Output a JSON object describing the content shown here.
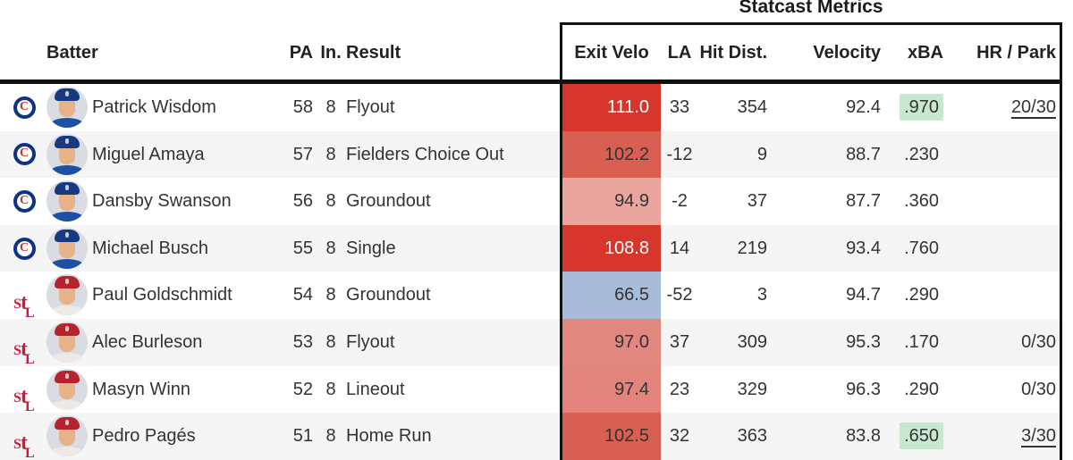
{
  "title": "Statcast Metrics",
  "columns": {
    "batter": "Batter",
    "pa": "PA",
    "inning": "In.",
    "result": "Result",
    "exit_velo": "Exit Velo",
    "la": "LA",
    "hit_dist": "Hit Dist.",
    "velocity": "Velocity",
    "xba": "xBA",
    "hr_park": "HR / Park"
  },
  "teams": {
    "CHC": {
      "name": "Chicago Cubs",
      "icon": "cubs-logo",
      "logo_blue": "#0e3386",
      "logo_red": "#cc3433",
      "cap": "#16397f",
      "jersey": "#1d4fa5"
    },
    "STL": {
      "name": "St. Louis Cardinals",
      "icon": "cardinals-logo",
      "logo_red": "#c41e3a",
      "cap": "#b5232c",
      "jersey": "#ece9e6"
    }
  },
  "colors": {
    "text": "#333333",
    "header_text": "#222222",
    "border": "#111111",
    "row_stripe": "#f5f5f5",
    "xba_highlight": "#c7e8cf",
    "link_text": "#333333",
    "ev_hot": "#d6362c",
    "ev_cold": "#a8bcd9"
  },
  "rows": [
    {
      "team": "CHC",
      "batter": "Patrick Wisdom",
      "pa": "58",
      "inning": "8",
      "result": "Flyout",
      "exit_velo": "111.0",
      "ev_bg": "#d6362c",
      "ev_text": "#ffffff",
      "la": "33",
      "hit_dist": "354",
      "velocity": "92.4",
      "xba": ".970",
      "xba_highlight": true,
      "hr_park": "20/30",
      "hr_park_link": true
    },
    {
      "team": "CHC",
      "batter": "Miguel Amaya",
      "pa": "57",
      "inning": "8",
      "result": "Fielders Choice Out",
      "exit_velo": "102.2",
      "ev_bg": "#d95f53",
      "ev_text": "#333333",
      "la": "-12",
      "hit_dist": "9",
      "velocity": "88.7",
      "xba": ".230",
      "xba_highlight": false,
      "hr_park": "",
      "hr_park_link": false
    },
    {
      "team": "CHC",
      "batter": "Dansby Swanson",
      "pa": "56",
      "inning": "8",
      "result": "Groundout",
      "exit_velo": "94.9",
      "ev_bg": "#eaa59f",
      "ev_text": "#333333",
      "la": "-2",
      "hit_dist": "37",
      "velocity": "87.7",
      "xba": ".360",
      "xba_highlight": false,
      "hr_park": "",
      "hr_park_link": false
    },
    {
      "team": "CHC",
      "batter": "Michael Busch",
      "pa": "55",
      "inning": "8",
      "result": "Single",
      "exit_velo": "108.8",
      "ev_bg": "#d6362c",
      "ev_text": "#ffffff",
      "la": "14",
      "hit_dist": "219",
      "velocity": "93.4",
      "xba": ".760",
      "xba_highlight": false,
      "hr_park": "",
      "hr_park_link": false
    },
    {
      "team": "STL",
      "batter": "Paul Goldschmidt",
      "pa": "54",
      "inning": "8",
      "result": "Groundout",
      "exit_velo": "66.5",
      "ev_bg": "#a8bcd9",
      "ev_text": "#333333",
      "la": "-52",
      "hit_dist": "3",
      "velocity": "94.7",
      "xba": ".290",
      "xba_highlight": false,
      "hr_park": "",
      "hr_park_link": false
    },
    {
      "team": "STL",
      "batter": "Alec Burleson",
      "pa": "53",
      "inning": "8",
      "result": "Flyout",
      "exit_velo": "97.0",
      "ev_bg": "#e2877f",
      "ev_text": "#333333",
      "la": "37",
      "hit_dist": "309",
      "velocity": "95.3",
      "xba": ".170",
      "xba_highlight": false,
      "hr_park": "0/30",
      "hr_park_link": false
    },
    {
      "team": "STL",
      "batter": "Masyn Winn",
      "pa": "52",
      "inning": "8",
      "result": "Lineout",
      "exit_velo": "97.4",
      "ev_bg": "#e2847c",
      "ev_text": "#333333",
      "la": "23",
      "hit_dist": "329",
      "velocity": "96.3",
      "xba": ".290",
      "xba_highlight": false,
      "hr_park": "0/30",
      "hr_park_link": false
    },
    {
      "team": "STL",
      "batter": "Pedro Pagés",
      "pa": "51",
      "inning": "8",
      "result": "Home Run",
      "exit_velo": "102.5",
      "ev_bg": "#d95f53",
      "ev_text": "#333333",
      "la": "32",
      "hit_dist": "363",
      "velocity": "83.8",
      "xba": ".650",
      "xba_highlight": true,
      "hr_park": "3/30",
      "hr_park_link": true
    }
  ]
}
